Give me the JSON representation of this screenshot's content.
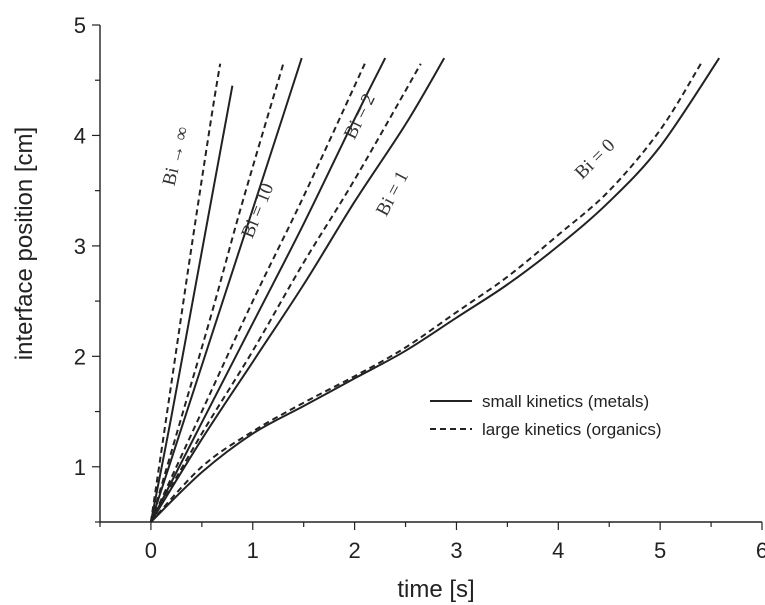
{
  "chart_data": {
    "type": "line",
    "title": "",
    "xlabel": "time [s]",
    "ylabel": "interface position [cm]",
    "xlim": [
      -0.5,
      6
    ],
    "ylim": [
      0.5,
      5
    ],
    "xticks": [
      0,
      1,
      2,
      3,
      4,
      5,
      6
    ],
    "yticks": [
      1,
      2,
      3,
      4,
      5
    ],
    "grid": false,
    "legend": {
      "placement": "center-right",
      "entries": [
        {
          "label": "small kinetics (metals)",
          "style": "solid"
        },
        {
          "label": "large kinetics (organics)",
          "style": "dashed"
        }
      ]
    },
    "annotations": [
      {
        "text": "Bi → ∞",
        "x": 0.3,
        "y": 3.8,
        "rotate": -76
      },
      {
        "text": "Bi = 10",
        "x": 1.1,
        "y": 3.3,
        "rotate": -68
      },
      {
        "text": "Bi = 2",
        "x": 2.1,
        "y": 4.15,
        "rotate": -64
      },
      {
        "text": "Bi = 1",
        "x": 2.42,
        "y": 3.45,
        "rotate": -62
      },
      {
        "text": "Bi = 0",
        "x": 4.4,
        "y": 3.75,
        "rotate": -45
      }
    ],
    "series": [
      {
        "style": "solid",
        "x": [
          0,
          0.2,
          0.4,
          0.6,
          0.8
        ],
        "y": [
          0.5,
          1.45,
          2.45,
          3.45,
          4.45
        ]
      },
      {
        "style": "dashed",
        "x": [
          0,
          0.2,
          0.4,
          0.6,
          0.68
        ],
        "y": [
          0.5,
          1.75,
          3.0,
          4.2,
          4.65
        ]
      },
      {
        "style": "solid",
        "x": [
          0,
          0.3,
          0.6,
          0.9,
          1.2,
          1.48
        ],
        "y": [
          0.5,
          1.35,
          2.2,
          3.05,
          3.9,
          4.7
        ]
      },
      {
        "style": "dashed",
        "x": [
          0,
          0.3,
          0.6,
          0.9,
          1.3
        ],
        "y": [
          0.5,
          1.45,
          2.4,
          3.4,
          4.65
        ]
      },
      {
        "style": "solid",
        "x": [
          0,
          0.5,
          1.0,
          1.5,
          2.0,
          2.3
        ],
        "y": [
          0.5,
          1.4,
          2.3,
          3.2,
          4.15,
          4.7
        ]
      },
      {
        "style": "dashed",
        "x": [
          0,
          0.5,
          1.0,
          1.5,
          2.1
        ],
        "y": [
          0.5,
          1.5,
          2.5,
          3.45,
          4.65
        ]
      },
      {
        "style": "solid",
        "x": [
          0,
          0.5,
          1.0,
          1.5,
          2.0,
          2.5,
          2.88
        ],
        "y": [
          0.5,
          1.25,
          1.95,
          2.65,
          3.4,
          4.1,
          4.7
        ]
      },
      {
        "style": "dashed",
        "x": [
          0,
          0.5,
          1.0,
          1.5,
          2.0,
          2.65
        ],
        "y": [
          0.5,
          1.3,
          2.05,
          2.85,
          3.6,
          4.65
        ]
      },
      {
        "style": "solid",
        "x": [
          0,
          0.5,
          1.0,
          1.5,
          2.0,
          2.5,
          3.0,
          3.5,
          4.0,
          4.5,
          5.0,
          5.58
        ],
        "y": [
          0.5,
          0.95,
          1.3,
          1.55,
          1.8,
          2.05,
          2.35,
          2.65,
          3.0,
          3.4,
          3.9,
          4.7
        ]
      },
      {
        "style": "dashed",
        "x": [
          0,
          0.5,
          1.0,
          1.5,
          2.0,
          2.5,
          3.0,
          3.5,
          4.0,
          4.5,
          5.0,
          5.4
        ],
        "y": [
          0.5,
          1.0,
          1.32,
          1.58,
          1.82,
          2.08,
          2.4,
          2.72,
          3.1,
          3.5,
          4.05,
          4.65
        ]
      }
    ]
  }
}
